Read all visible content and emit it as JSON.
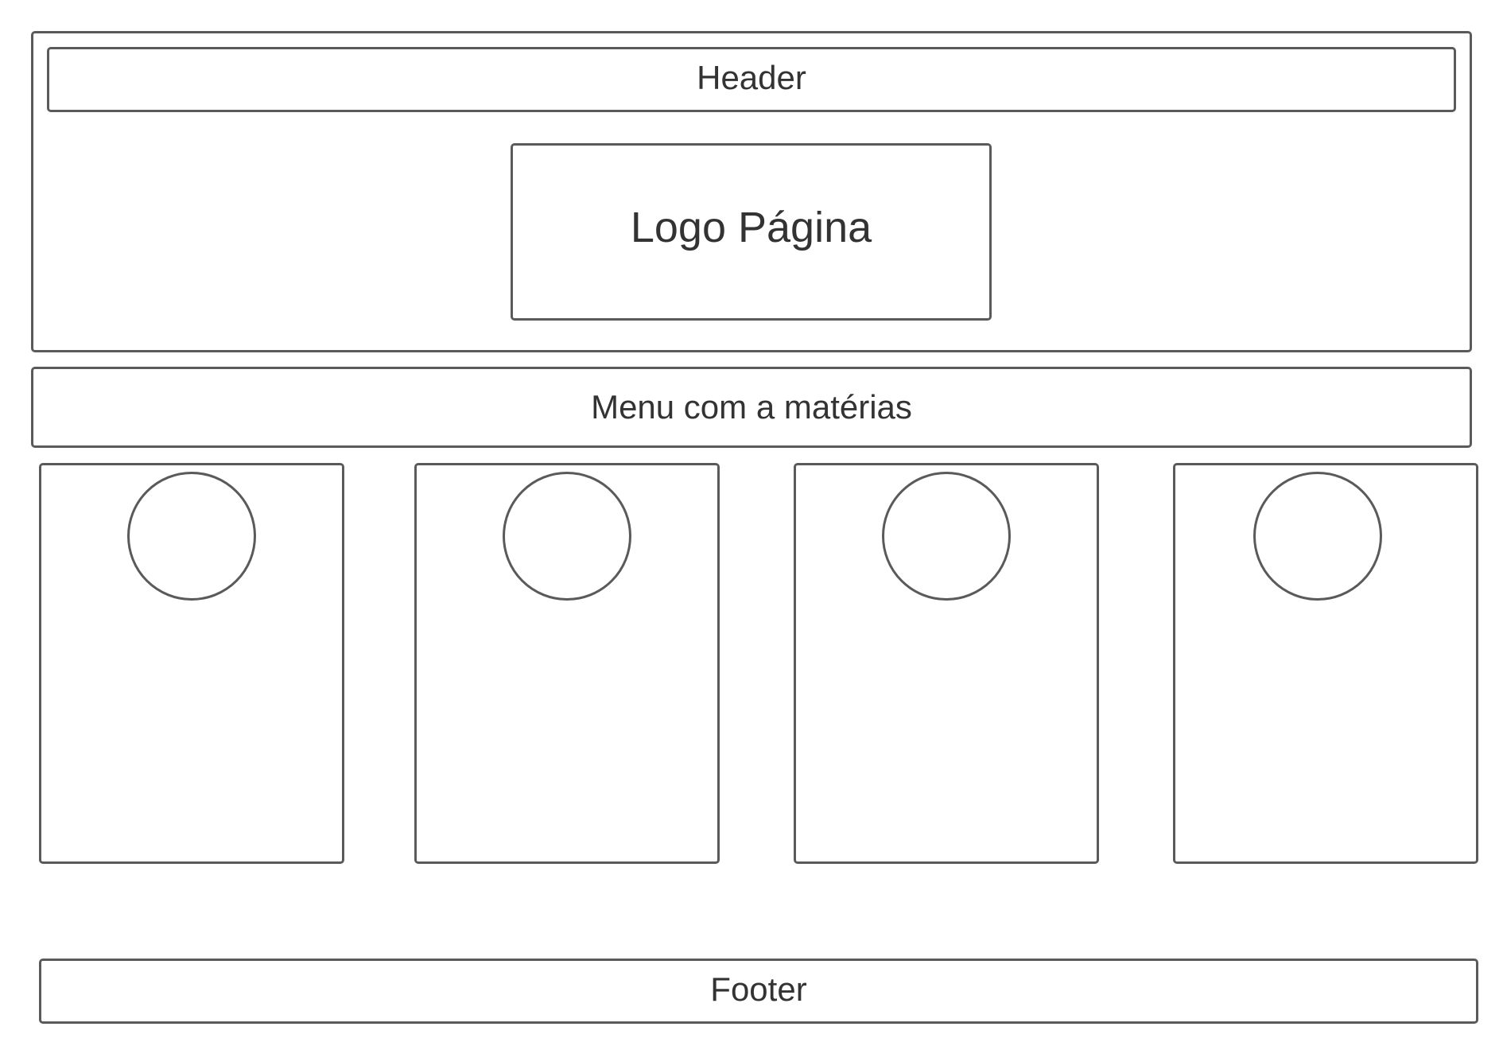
{
  "header": {
    "label": "Header"
  },
  "logo": {
    "label": "Logo Página"
  },
  "menu": {
    "label": "Menu com a matérias"
  },
  "cards": [
    {
      "avatar": "circle-placeholder"
    },
    {
      "avatar": "circle-placeholder"
    },
    {
      "avatar": "circle-placeholder"
    },
    {
      "avatar": "circle-placeholder"
    }
  ],
  "footer": {
    "label": "Footer"
  },
  "colors": {
    "stroke": "#5a5a5a",
    "text": "#333333",
    "background": "#ffffff"
  }
}
